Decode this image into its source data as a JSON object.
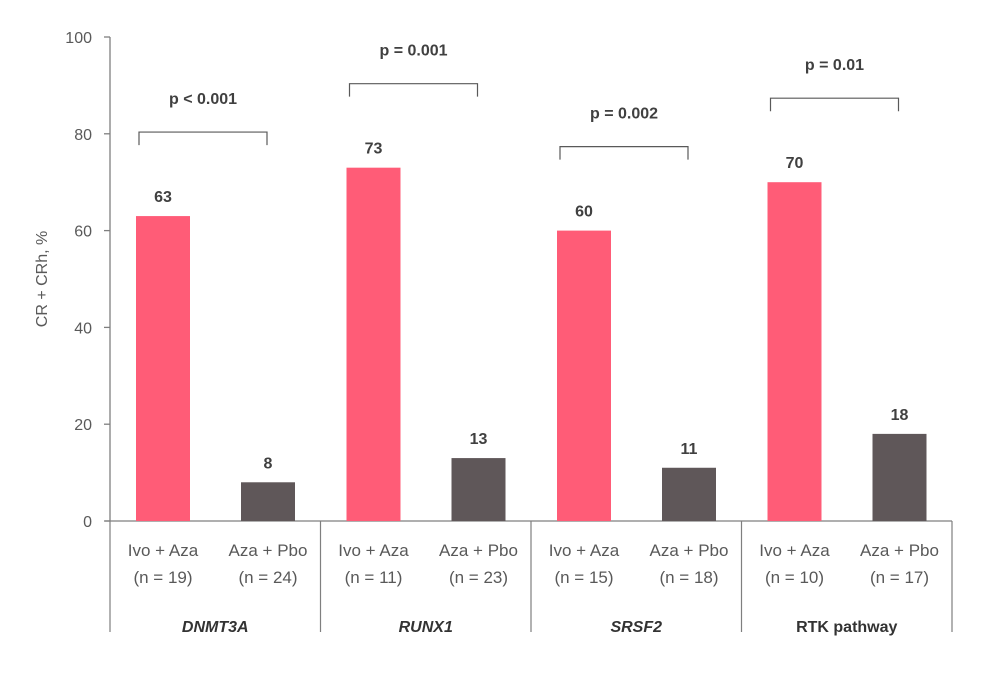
{
  "chart_data": {
    "type": "bar",
    "ylabel": "CR + CRh, %",
    "ylim": [
      0,
      100
    ],
    "yticks": [
      0,
      20,
      40,
      60,
      80,
      100
    ],
    "grid": false,
    "colors": {
      "Ivo + Aza": "#FF5C77",
      "Aza + Pbo": "#5F5759"
    },
    "groups": [
      {
        "name": "DNMT3A",
        "italic": true,
        "p": "p < 0.001",
        "bars": [
          {
            "label": "Ivo + Aza",
            "n": "(n = 19)",
            "value": 63
          },
          {
            "label": "Aza + Pbo",
            "n": "(n = 24)",
            "value": 8
          }
        ]
      },
      {
        "name": "RUNX1",
        "italic": true,
        "p": "p = 0.001",
        "bars": [
          {
            "label": "Ivo + Aza",
            "n": "(n = 11)",
            "value": 73
          },
          {
            "label": "Aza + Pbo",
            "n": "(n = 23)",
            "value": 13
          }
        ]
      },
      {
        "name": "SRSF2",
        "italic": true,
        "p": "p = 0.002",
        "bars": [
          {
            "label": "Ivo + Aza",
            "n": "(n = 15)",
            "value": 60
          },
          {
            "label": "Aza + Pbo",
            "n": "(n = 18)",
            "value": 11
          }
        ]
      },
      {
        "name": "RTK pathway",
        "italic": false,
        "p": "p = 0.01",
        "bars": [
          {
            "label": "Ivo + Aza",
            "n": "(n = 10)",
            "value": 70
          },
          {
            "label": "Aza + Pbo",
            "n": "(n = 17)",
            "value": 18
          }
        ]
      }
    ]
  }
}
